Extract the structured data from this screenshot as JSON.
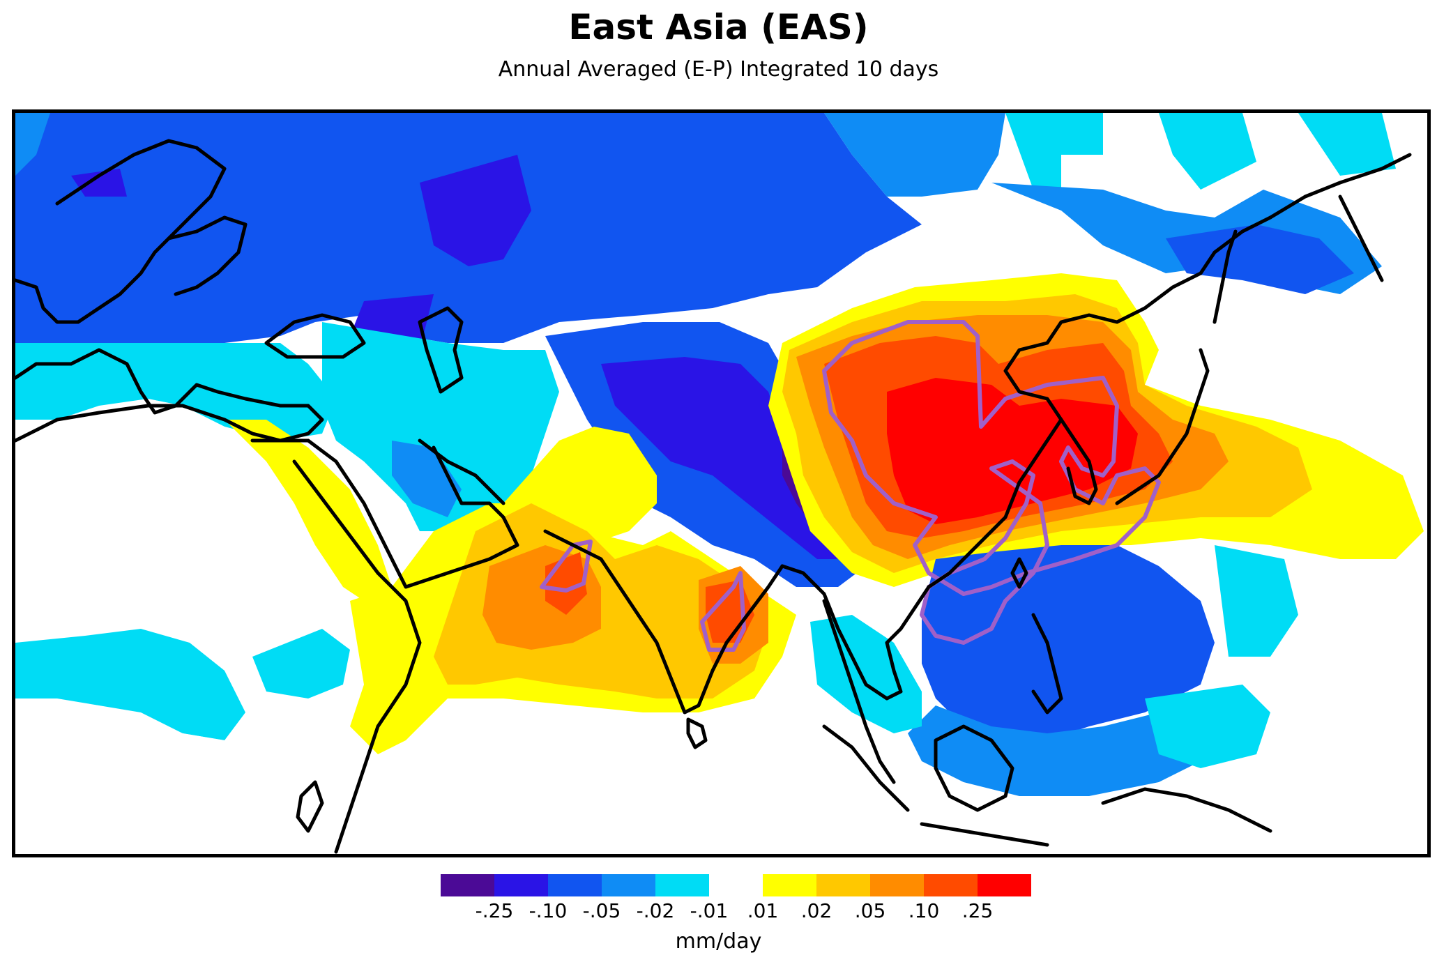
{
  "title": "East Asia (EAS)",
  "subtitle": "Annual Averaged (E-P) Integrated 10 days",
  "colors": {
    "neg_25": "#4b0a96",
    "neg_10": "#2a14e6",
    "neg_05": "#1155f0",
    "neg_02": "#0f8cf5",
    "neg_01": "#00dcf5",
    "neutral": "#ffffff",
    "pos_01": "#ffff00",
    "pos_02": "#ffc800",
    "pos_05": "#ff8c00",
    "pos_10": "#ff4b00",
    "pos_25": "#ff0000",
    "contour": "#a060c8",
    "coastline": "#000000"
  },
  "legend": {
    "tick_labels": [
      "-.25",
      "-.10",
      "-.05",
      "-.02",
      "-.01",
      ".01",
      ".02",
      ".05",
      ".10",
      ".25"
    ],
    "units": "mm/day",
    "bins": [
      "neg_25",
      "neg_10",
      "neg_05",
      "neg_02",
      "neg_01",
      "neutral",
      "pos_01",
      "pos_02",
      "pos_05",
      "pos_10",
      "pos_25"
    ]
  },
  "map": {
    "region": "East Asia (EAS)",
    "field": "E-P",
    "projection": "equirectangular"
  }
}
